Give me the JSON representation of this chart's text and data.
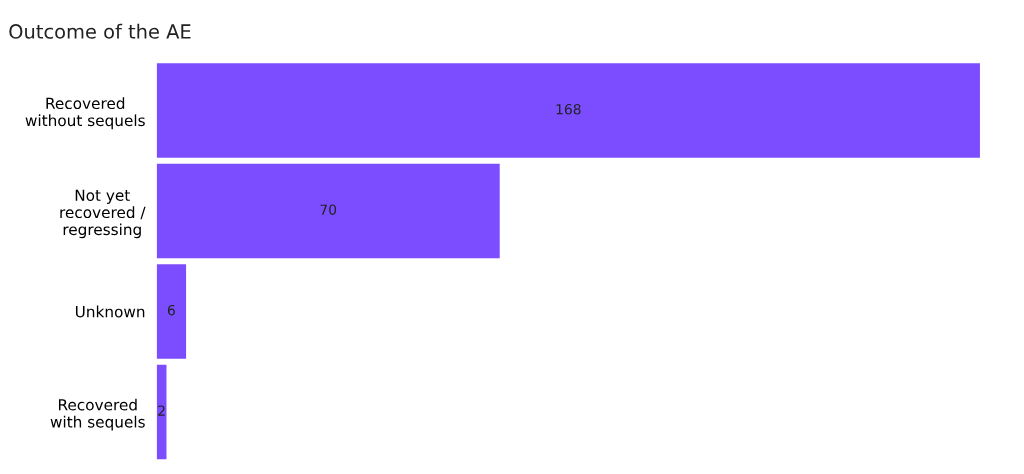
{
  "chart_data": {
    "type": "bar",
    "orientation": "horizontal",
    "title": "Outcome of the AE",
    "categories": [
      "Recovered\nwithout sequels",
      "Not yet\nrecovered /\nregressing",
      "Unknown",
      "Recovered\nwith sequels"
    ],
    "values": [
      168,
      70,
      6,
      2
    ],
    "color": "#7b4dff",
    "data_labels": true,
    "grid": false,
    "legend": false
  }
}
